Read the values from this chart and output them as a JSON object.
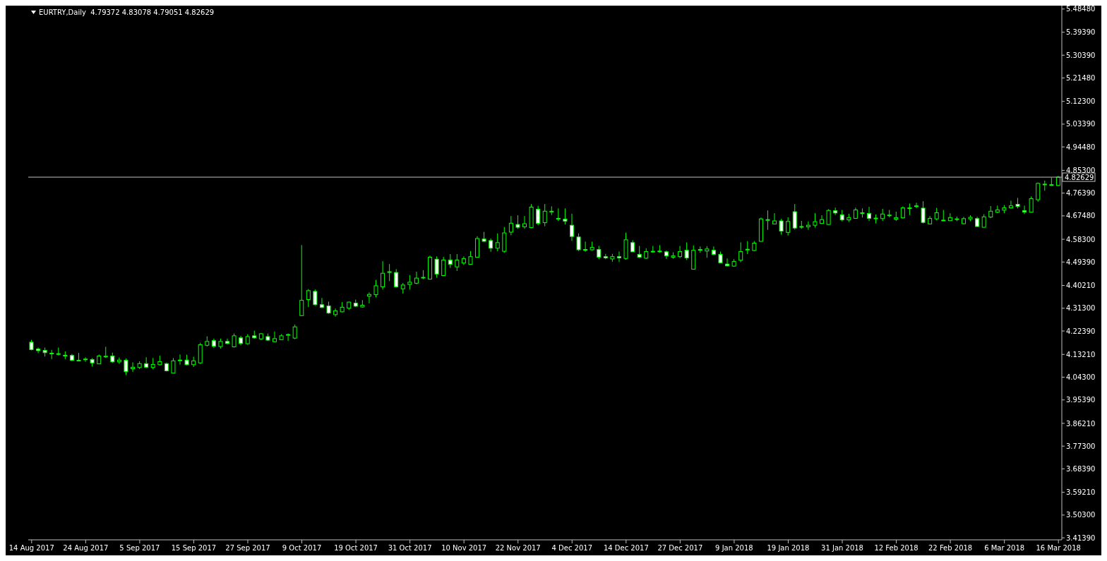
{
  "chart_data": {
    "type": "candlestick",
    "title": "EURTRY,Daily  4.79372 4.83078 4.79051 4.82629",
    "color": "#00ff00",
    "categories": [
      "14 Aug 2017",
      null,
      null,
      null,
      null,
      null,
      null,
      null,
      "24 Aug 2017",
      null,
      null,
      null,
      null,
      null,
      null,
      null,
      "5 Sep 2017",
      null,
      null,
      null,
      null,
      null,
      null,
      null,
      "15 Sep 2017",
      null,
      null,
      null,
      null,
      null,
      null,
      null,
      "27 Sep 2017",
      null,
      null,
      null,
      null,
      null,
      null,
      null,
      "9 Oct 2017",
      null,
      null,
      null,
      null,
      null,
      null,
      null,
      "19 Oct 2017",
      null,
      null,
      null,
      null,
      null,
      null,
      null,
      "31 Oct 2017",
      null,
      null,
      null,
      null,
      null,
      null,
      null,
      "10 Nov 2017",
      null,
      null,
      null,
      null,
      null,
      null,
      null,
      "22 Nov 2017",
      null,
      null,
      null,
      null,
      null,
      null,
      null,
      "4 Dec 2017",
      null,
      null,
      null,
      null,
      null,
      null,
      null,
      "14 Dec 2017",
      null,
      null,
      null,
      null,
      null,
      null,
      null,
      "27 Dec 2017",
      null,
      null,
      null,
      null,
      null,
      null,
      null,
      "9 Jan 2018",
      null,
      null,
      null,
      null,
      null,
      null,
      null,
      "19 Jan 2018",
      null,
      null,
      null,
      null,
      null,
      null,
      null,
      "31 Jan 2018",
      null,
      null,
      null,
      null,
      null,
      null,
      null,
      "12 Feb 2018",
      null,
      null,
      null,
      null,
      null,
      null,
      null,
      "22 Feb 2018",
      null,
      null,
      null,
      null,
      null,
      null,
      null,
      "6 Mar 2018",
      null,
      null,
      null,
      null,
      null,
      null,
      null,
      "16 Mar 2018"
    ],
    "ohlc": [
      [
        4.18,
        4.189,
        4.148,
        4.151
      ],
      [
        4.153,
        4.159,
        4.137,
        4.147
      ],
      [
        4.148,
        4.159,
        4.124,
        4.139
      ],
      [
        4.135,
        4.15,
        4.114,
        4.137
      ],
      [
        4.134,
        4.159,
        4.128,
        4.135
      ],
      [
        4.129,
        4.144,
        4.114,
        4.128
      ],
      [
        4.128,
        4.134,
        4.106,
        4.109
      ],
      [
        4.109,
        4.138,
        4.106,
        4.108
      ],
      [
        4.112,
        4.121,
        4.103,
        4.114
      ],
      [
        4.112,
        4.118,
        4.085,
        4.099
      ],
      [
        4.095,
        4.132,
        4.095,
        4.126
      ],
      [
        4.124,
        4.162,
        4.118,
        4.125
      ],
      [
        4.126,
        4.139,
        4.099,
        4.103
      ],
      [
        4.103,
        4.12,
        4.095,
        4.11
      ],
      [
        4.109,
        4.116,
        4.051,
        4.065
      ],
      [
        4.076,
        4.101,
        4.064,
        4.082
      ],
      [
        4.081,
        4.105,
        4.075,
        4.096
      ],
      [
        4.096,
        4.121,
        4.079,
        4.082
      ],
      [
        4.081,
        4.118,
        4.074,
        4.093
      ],
      [
        4.092,
        4.127,
        4.089,
        4.104
      ],
      [
        4.096,
        4.1,
        4.065,
        4.068
      ],
      [
        4.059,
        4.118,
        4.059,
        4.107
      ],
      [
        4.109,
        4.132,
        4.092,
        4.11
      ],
      [
        4.11,
        4.131,
        4.089,
        4.092
      ],
      [
        4.092,
        4.123,
        4.083,
        4.107
      ],
      [
        4.099,
        4.178,
        4.095,
        4.17
      ],
      [
        4.168,
        4.203,
        4.163,
        4.183
      ],
      [
        4.186,
        4.194,
        4.158,
        4.164
      ],
      [
        4.163,
        4.194,
        4.155,
        4.183
      ],
      [
        4.183,
        4.194,
        4.171,
        4.175
      ],
      [
        4.162,
        4.214,
        4.159,
        4.205
      ],
      [
        4.197,
        4.205,
        4.168,
        4.175
      ],
      [
        4.174,
        4.211,
        4.17,
        4.202
      ],
      [
        4.205,
        4.225,
        4.194,
        4.197
      ],
      [
        4.193,
        4.216,
        4.188,
        4.213
      ],
      [
        4.202,
        4.214,
        4.185,
        4.188
      ],
      [
        4.182,
        4.222,
        4.18,
        4.194
      ],
      [
        4.19,
        4.211,
        4.188,
        4.205
      ],
      [
        4.209,
        4.214,
        4.185,
        4.21
      ],
      [
        4.196,
        4.249,
        4.192,
        4.24
      ],
      [
        4.284,
        4.56,
        4.282,
        4.344
      ],
      [
        4.347,
        4.388,
        4.318,
        4.382
      ],
      [
        4.379,
        4.386,
        4.324,
        4.327
      ],
      [
        4.327,
        4.353,
        4.313,
        4.316
      ],
      [
        4.322,
        4.339,
        4.291,
        4.294
      ],
      [
        4.288,
        4.312,
        4.28,
        4.303
      ],
      [
        4.299,
        4.337,
        4.297,
        4.317
      ],
      [
        4.313,
        4.339,
        4.307,
        4.337
      ],
      [
        4.333,
        4.347,
        4.318,
        4.321
      ],
      [
        4.318,
        4.345,
        4.315,
        4.325
      ],
      [
        4.36,
        4.375,
        4.332,
        4.367
      ],
      [
        4.366,
        4.424,
        4.356,
        4.401
      ],
      [
        4.397,
        4.497,
        4.386,
        4.45
      ],
      [
        4.454,
        4.486,
        4.419,
        4.456
      ],
      [
        4.453,
        4.466,
        4.394,
        4.397
      ],
      [
        4.389,
        4.412,
        4.37,
        4.404
      ],
      [
        4.406,
        4.443,
        4.386,
        4.415
      ],
      [
        4.411,
        4.456,
        4.407,
        4.431
      ],
      [
        4.432,
        4.462,
        4.427,
        4.434
      ],
      [
        4.427,
        4.519,
        4.425,
        4.513
      ],
      [
        4.505,
        4.516,
        4.433,
        4.447
      ],
      [
        4.441,
        4.514,
        4.441,
        4.502
      ],
      [
        4.502,
        4.525,
        4.471,
        4.485
      ],
      [
        4.475,
        4.525,
        4.459,
        4.502
      ],
      [
        4.49,
        4.516,
        4.482,
        4.507
      ],
      [
        4.485,
        4.537,
        4.485,
        4.515
      ],
      [
        4.513,
        4.595,
        4.512,
        4.586
      ],
      [
        4.584,
        4.612,
        4.574,
        4.575
      ],
      [
        4.578,
        4.586,
        4.534,
        4.548
      ],
      [
        4.548,
        4.606,
        4.536,
        4.57
      ],
      [
        4.536,
        4.631,
        4.53,
        4.608
      ],
      [
        4.611,
        4.674,
        4.599,
        4.646
      ],
      [
        4.641,
        4.677,
        4.624,
        4.63
      ],
      [
        4.632,
        4.674,
        4.624,
        4.644
      ],
      [
        4.629,
        4.721,
        4.626,
        4.709
      ],
      [
        4.701,
        4.714,
        4.638,
        4.645
      ],
      [
        4.648,
        4.721,
        4.634,
        4.693
      ],
      [
        4.691,
        4.712,
        4.678,
        4.693
      ],
      [
        4.664,
        4.704,
        4.655,
        4.665
      ],
      [
        4.662,
        4.704,
        4.641,
        4.654
      ],
      [
        4.638,
        4.683,
        4.577,
        4.594
      ],
      [
        4.592,
        4.606,
        4.537,
        4.542
      ],
      [
        4.543,
        4.574,
        4.534,
        4.542
      ],
      [
        4.542,
        4.574,
        4.539,
        4.551
      ],
      [
        4.543,
        4.557,
        4.505,
        4.513
      ],
      [
        4.515,
        4.526,
        4.505,
        4.51
      ],
      [
        4.506,
        4.526,
        4.495,
        4.515
      ],
      [
        4.515,
        4.535,
        4.494,
        4.51
      ],
      [
        4.508,
        4.609,
        4.503,
        4.581
      ],
      [
        4.57,
        4.579,
        4.533,
        4.534
      ],
      [
        4.524,
        4.557,
        4.51,
        4.513
      ],
      [
        4.509,
        4.548,
        4.506,
        4.535
      ],
      [
        4.535,
        4.557,
        4.53,
        4.536
      ],
      [
        4.536,
        4.56,
        4.53,
        4.537
      ],
      [
        4.534,
        4.539,
        4.506,
        4.518
      ],
      [
        4.513,
        4.532,
        4.507,
        4.518
      ],
      [
        4.515,
        4.557,
        4.509,
        4.535
      ],
      [
        4.54,
        4.571,
        4.502,
        4.51
      ],
      [
        4.466,
        4.559,
        4.466,
        4.54
      ],
      [
        4.541,
        4.555,
        4.53,
        4.543
      ],
      [
        4.537,
        4.556,
        4.511,
        4.545
      ],
      [
        4.54,
        4.555,
        4.521,
        4.524
      ],
      [
        4.524,
        4.535,
        4.489,
        4.491
      ],
      [
        4.486,
        4.508,
        4.477,
        4.479
      ],
      [
        4.478,
        4.505,
        4.475,
        4.496
      ],
      [
        4.501,
        4.571,
        4.493,
        4.535
      ],
      [
        4.542,
        4.576,
        4.525,
        4.544
      ],
      [
        4.539,
        4.576,
        4.536,
        4.568
      ],
      [
        4.575,
        4.668,
        4.574,
        4.663
      ],
      [
        4.658,
        4.696,
        4.62,
        4.66
      ],
      [
        4.643,
        4.685,
        4.642,
        4.655
      ],
      [
        4.655,
        4.663,
        4.601,
        4.615
      ],
      [
        4.61,
        4.669,
        4.598,
        4.653
      ],
      [
        4.691,
        4.721,
        4.621,
        4.627
      ],
      [
        4.631,
        4.655,
        4.624,
        4.633
      ],
      [
        4.632,
        4.653,
        4.62,
        4.638
      ],
      [
        4.638,
        4.685,
        4.629,
        4.652
      ],
      [
        4.645,
        4.677,
        4.644,
        4.66
      ],
      [
        4.641,
        4.701,
        4.64,
        4.696
      ],
      [
        4.695,
        4.707,
        4.678,
        4.686
      ],
      [
        4.679,
        4.698,
        4.653,
        4.659
      ],
      [
        4.659,
        4.683,
        4.651,
        4.668
      ],
      [
        4.665,
        4.707,
        4.664,
        4.698
      ],
      [
        4.685,
        4.704,
        4.668,
        4.687
      ],
      [
        4.684,
        4.71,
        4.655,
        4.665
      ],
      [
        4.664,
        4.68,
        4.645,
        4.666
      ],
      [
        4.664,
        4.702,
        4.655,
        4.682
      ],
      [
        4.676,
        4.698,
        4.669,
        4.678
      ],
      [
        4.662,
        4.691,
        4.655,
        4.668
      ],
      [
        4.667,
        4.712,
        4.664,
        4.706
      ],
      [
        4.704,
        4.723,
        4.678,
        4.706
      ],
      [
        4.713,
        4.726,
        4.705,
        4.714
      ],
      [
        4.705,
        4.732,
        4.645,
        4.649
      ],
      [
        4.643,
        4.674,
        4.642,
        4.665
      ],
      [
        4.663,
        4.706,
        4.657,
        4.687
      ],
      [
        4.657,
        4.698,
        4.654,
        4.658
      ],
      [
        4.656,
        4.685,
        4.655,
        4.668
      ],
      [
        4.661,
        4.672,
        4.654,
        4.663
      ],
      [
        4.644,
        4.671,
        4.642,
        4.664
      ],
      [
        4.663,
        4.677,
        4.654,
        4.669
      ],
      [
        4.664,
        4.671,
        4.631,
        4.633
      ],
      [
        4.63,
        4.681,
        4.629,
        4.671
      ],
      [
        4.67,
        4.713,
        4.666,
        4.693
      ],
      [
        4.689,
        4.715,
        4.685,
        4.698
      ],
      [
        4.697,
        4.717,
        4.685,
        4.706
      ],
      [
        4.706,
        4.734,
        4.704,
        4.714
      ],
      [
        4.72,
        4.745,
        4.704,
        4.712
      ],
      [
        4.695,
        4.715,
        4.682,
        4.69
      ],
      [
        4.689,
        4.751,
        4.688,
        4.742
      ],
      [
        4.738,
        4.805,
        4.73,
        4.802
      ],
      [
        4.797,
        4.813,
        4.773,
        4.799
      ],
      [
        4.795,
        4.825,
        4.792,
        4.797
      ],
      [
        4.79372,
        4.83078,
        4.79051,
        4.82629
      ]
    ],
    "ylim": [
      3.406,
      5.498
    ],
    "yticks": [
      {
        "value": 5.4848,
        "label": "5.48480"
      },
      {
        "value": 5.3939,
        "label": "5.39390"
      },
      {
        "value": 5.3039,
        "label": "5.30390"
      },
      {
        "value": 5.2148,
        "label": "5.21480"
      },
      {
        "value": 5.123,
        "label": "5.12300"
      },
      {
        "value": 5.0339,
        "label": "5.03390"
      },
      {
        "value": 4.9448,
        "label": "4.94480"
      },
      {
        "value": 4.853,
        "label": "4.85300"
      },
      {
        "value": 4.7639,
        "label": "4.76390"
      },
      {
        "value": 4.6748,
        "label": "4.67480"
      },
      {
        "value": 4.583,
        "label": "4.58300"
      },
      {
        "value": 4.4939,
        "label": "4.49390"
      },
      {
        "value": 4.4021,
        "label": "4.40210"
      },
      {
        "value": 4.313,
        "label": "4.31300"
      },
      {
        "value": 4.2239,
        "label": "4.22390"
      },
      {
        "value": 4.1321,
        "label": "4.13210"
      },
      {
        "value": 4.043,
        "label": "4.04300"
      },
      {
        "value": 3.9539,
        "label": "3.95390"
      },
      {
        "value": 3.8621,
        "label": "3.86210"
      },
      {
        "value": 3.773,
        "label": "3.77300"
      },
      {
        "value": 3.6839,
        "label": "3.68390"
      },
      {
        "value": 3.5921,
        "label": "3.59210"
      },
      {
        "value": 3.503,
        "label": "3.50300"
      },
      {
        "value": 3.4139,
        "label": "3.41390"
      }
    ],
    "ref_lines": [
      {
        "axis": "y",
        "value": 4.82629,
        "label": "4.82629",
        "color": "#c0c0c0"
      }
    ]
  }
}
